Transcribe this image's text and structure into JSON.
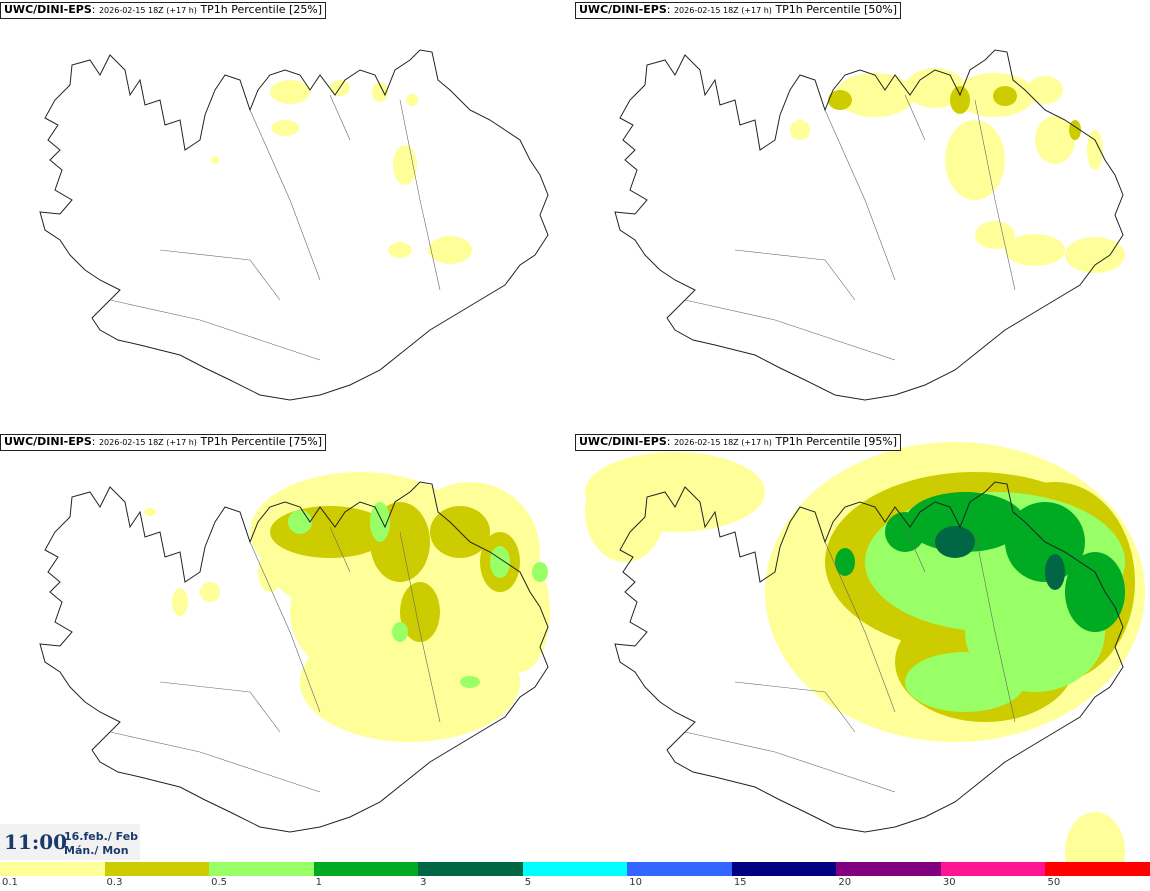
{
  "panels": [
    {
      "model": "UWC/DINI-EPS",
      "run": "2026-02-15 18Z",
      "lead": "(+17 h)",
      "field": "TP1h Percentile [25%]"
    },
    {
      "model": "UWC/DINI-EPS",
      "run": "2026-02-15 18Z",
      "lead": "(+17 h)",
      "field": "TP1h Percentile [50%]"
    },
    {
      "model": "UWC/DINI-EPS",
      "run": "2026-02-15 18Z",
      "lead": "(+17 h)",
      "field": "TP1h Percentile [75%]"
    },
    {
      "model": "UWC/DINI-EPS",
      "run": "2026-02-15 18Z",
      "lead": "(+17 h)",
      "field": "TP1h Percentile [95%]"
    }
  ],
  "valid_time": {
    "time": "11:00",
    "date": "16.feb./ Feb",
    "day": "Mán./ Mon"
  },
  "legend": {
    "colors": [
      "#ffff99",
      "#cccc00",
      "#99ff66",
      "#00aa22",
      "#006644",
      "#00ffff",
      "#3366ff",
      "#000080",
      "#800080",
      "#ff1493",
      "#ff0000"
    ],
    "labels": [
      "0.1",
      "0.3",
      "0.5",
      "1",
      "3",
      "5",
      "10",
      "15",
      "20",
      "30",
      "50"
    ]
  }
}
